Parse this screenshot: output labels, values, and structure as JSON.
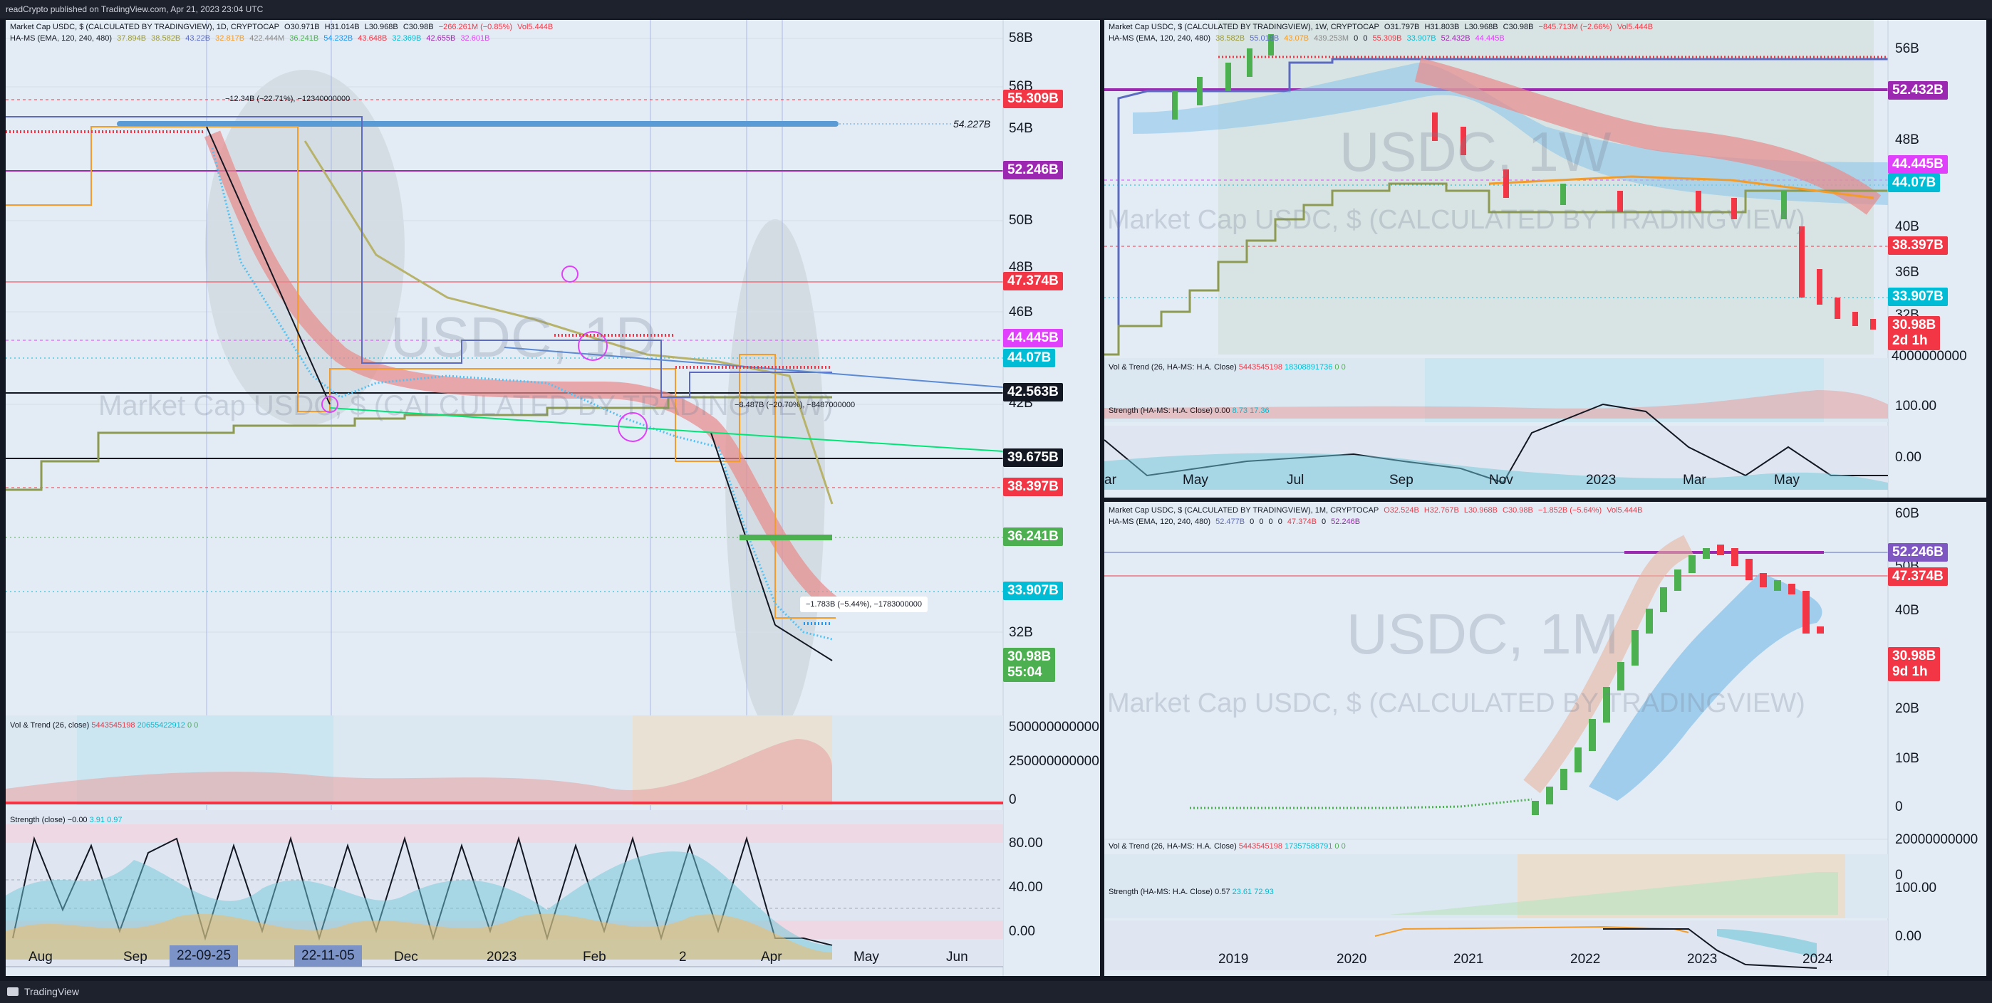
{
  "header": {
    "text": "readCrypto published on TradingView.com, Apr 21, 2023 23:04 UTC"
  },
  "footer": {
    "brand": "TradingView"
  },
  "colors": {
    "up": "#4caf50",
    "down": "#f23645",
    "bg": "#e3ecf5"
  },
  "panel_daily": {
    "legend1": [
      "Market Cap USDC, $ (CALCULATED BY TRADINGVIEW), 1D, CRYPTOCAP",
      "O30.971B",
      "H31.014B",
      "L30.968B",
      "C30.98B",
      "−266.261M (−0.85%)",
      "Vol5.444B"
    ],
    "legend2": [
      "HA-MS (EMA, 120, 240, 480)",
      "37.894B",
      "38.582B",
      "43.22B",
      "32.817B",
      "422.444M",
      "36.241B",
      "54.232B",
      "43.648B",
      "32.369B",
      "42.655B",
      "32.601B"
    ],
    "watermark_big": "USDC, 1D",
    "watermark_small": "Market Cap USDC, $ (CALCULATED BY TRADINGVIEW)",
    "yticks": [
      "58B",
      "56B",
      "54B",
      "50B",
      "48B",
      "46B",
      "42B",
      "32B"
    ],
    "tags": [
      {
        "label": "55.309B",
        "color": "#f23645",
        "value": 55.309
      },
      {
        "label": "52.246B",
        "color": "#9c27b0",
        "value": 52.246
      },
      {
        "label": "47.374B",
        "color": "#f23645",
        "value": 47.374
      },
      {
        "label": "44.445B",
        "color": "#e040fb",
        "value": 44.445
      },
      {
        "label": "44.07B",
        "color": "#00bcd4",
        "value": 44.07
      },
      {
        "label": "42.563B",
        "color": "#131722",
        "value": 42.563
      },
      {
        "label": "39.675B",
        "color": "#131722",
        "value": 39.675
      },
      {
        "label": "38.397B",
        "color": "#f23645",
        "value": 38.397
      },
      {
        "label": "36.241B",
        "color": "#4caf50",
        "value": 36.241
      },
      {
        "label": "33.907B",
        "color": "#00bcd4",
        "value": 33.907
      }
    ],
    "last_price": {
      "label": "30.98B",
      "countdown": "55:04"
    },
    "measures": [
      "−12.34B (−22.71%), −12340000000",
      "−8.487B (−20.70%), −8487000000",
      "−1.783B (−5.44%), −1783000000"
    ],
    "line_label": "54.227B",
    "xaxis": [
      "Aug",
      "Sep",
      "Dec",
      "2023",
      "Feb",
      "2",
      "Apr",
      "May",
      "Jun"
    ],
    "xbadges": [
      "22-09-25",
      "22-11-05"
    ],
    "vol_legend": [
      "Vol & Trend (26, close)",
      "5443545198",
      "20655422912",
      "0",
      "0"
    ],
    "vol_axis": [
      "500000000000",
      "250000000000",
      "0"
    ],
    "str_legend": [
      "Strength (close)",
      "−0.00",
      "3.91",
      "0.97"
    ],
    "str_axis": [
      "80.00",
      "40.00",
      "0.00"
    ]
  },
  "panel_weekly": {
    "legend1": [
      "Market Cap USDC, $ (CALCULATED BY TRADINGVIEW), 1W, CRYPTOCAP",
      "O31.797B",
      "H31.803B",
      "L30.968B",
      "C30.98B",
      "−845.713M (−2.66%)",
      "Vol5.444B"
    ],
    "legend2": [
      "HA-MS (EMA, 120, 240, 480)",
      "38.582B",
      "55.018B",
      "43.07B",
      "439.253M",
      "0",
      "0",
      "55.309B",
      "33.907B",
      "52.432B",
      "44.445B"
    ],
    "watermark_big": "USDC, 1W",
    "watermark_small": "Market Cap USDC, $ (CALCULATED BY TRADINGVIEW)",
    "yticks": [
      "56B",
      "48B",
      "40B",
      "36B",
      "32B",
      "4000000000"
    ],
    "tags": [
      {
        "label": "52.432B",
        "color": "#9c27b0"
      },
      {
        "label": "44.445B",
        "color": "#e040fb"
      },
      {
        "label": "44.07B",
        "color": "#00bcd4"
      },
      {
        "label": "38.397B",
        "color": "#f23645"
      },
      {
        "label": "33.907B",
        "color": "#00bcd4"
      }
    ],
    "last_price": {
      "label": "30.98B",
      "countdown": "2d 1h"
    },
    "xaxis": [
      "ar",
      "May",
      "Jul",
      "Sep",
      "Nov",
      "2023",
      "Mar",
      "May"
    ],
    "vol_legend": [
      "Vol & Trend (26, HA-MS: H.A. Close)",
      "5443545198",
      "18308891736",
      "0",
      "0"
    ],
    "str_legend": [
      "Strength (HA-MS: H.A. Close)",
      "0.00",
      "8.73",
      "17.36"
    ],
    "str_axis": [
      "100.00",
      "0.00"
    ]
  },
  "panel_monthly": {
    "legend1": [
      "Market Cap USDC, $ (CALCULATED BY TRADINGVIEW), 1M, CRYPTOCAP",
      "O32.524B",
      "H32.767B",
      "L30.968B",
      "C30.98B",
      "−1.852B (−5.64%)",
      "Vol5.444B"
    ],
    "legend2": [
      "HA-MS (EMA, 120, 240, 480)",
      "52.477B",
      "0",
      "0",
      "0",
      "0",
      "47.374B",
      "0",
      "52.246B"
    ],
    "watermark_big": "USDC, 1M",
    "watermark_small": "Market Cap USDC, $ (CALCULATED BY TRADINGVIEW)",
    "yticks": [
      "60B",
      "50B",
      "40B",
      "20B",
      "10B",
      "0"
    ],
    "tags": [
      {
        "label": "52.246B",
        "color": "#7e57c2"
      },
      {
        "label": "47.374B",
        "color": "#f23645"
      }
    ],
    "last_price": {
      "label": "30.98B",
      "countdown": "9d 1h"
    },
    "xaxis": [
      "2019",
      "2020",
      "2021",
      "2022",
      "2023",
      "2024"
    ],
    "vol_legend": [
      "Vol & Trend (26, HA-MS: H.A. Close)",
      "5443545198",
      "17357588791",
      "0",
      "0"
    ],
    "vol_axis": [
      "20000000000",
      "0"
    ],
    "str_legend": [
      "Strength (HA-MS: H.A. Close)",
      "0.57",
      "23.61",
      "72.93"
    ],
    "str_axis": [
      "100.00",
      "0.00"
    ]
  },
  "chart_data": [
    {
      "type": "line",
      "title": "Market Cap USDC, $ (CALCULATED BY TRADINGVIEW), 1D, CRYPTOCAP",
      "x": [
        "Aug",
        "Sep",
        "Dec",
        "2023",
        "Feb",
        "2",
        "Apr"
      ],
      "series": [
        {
          "values": [
            55.3,
            54.2,
            44.0,
            42.5,
            42.0,
            40.5,
            30.98
          ]
        }
      ],
      "ylabel": "",
      "ylim": [
        29,
        60
      ]
    },
    {
      "type": "line",
      "title": "Market Cap USDC, $ (CALCULATED BY TRADINGVIEW), 1W, CRYPTOCAP",
      "x": [
        "May",
        "Jul",
        "Sep",
        "Nov",
        "2023",
        "Mar"
      ],
      "series": [
        {
          "values": [
            53.5,
            55.5,
            53.0,
            44.5,
            44.0,
            30.98
          ]
        }
      ],
      "ylim": [
        28,
        58
      ]
    },
    {
      "type": "line",
      "title": "Market Cap USDC, $ (CALCULATED BY TRADINGVIEW), 1M, CRYPTOCAP",
      "x": [
        "2019",
        "2020",
        "2021",
        "2022",
        "2023"
      ],
      "series": [
        {
          "values": [
            0.3,
            0.5,
            3.5,
            42.0,
            30.98
          ]
        }
      ],
      "ylim": [
        0,
        60
      ]
    }
  ]
}
